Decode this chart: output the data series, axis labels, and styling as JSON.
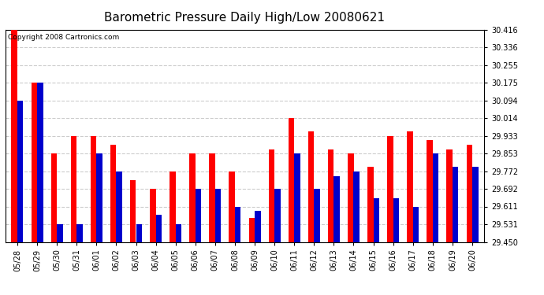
{
  "title": "Barometric Pressure Daily High/Low 20080621",
  "copyright": "Copyright 2008 Cartronics.com",
  "dates": [
    "05/28",
    "05/29",
    "05/30",
    "05/31",
    "06/01",
    "06/02",
    "06/03",
    "06/04",
    "06/05",
    "06/06",
    "06/07",
    "06/08",
    "06/09",
    "06/10",
    "06/11",
    "06/12",
    "06/13",
    "06/14",
    "06/15",
    "06/16",
    "06/17",
    "06/18",
    "06/19",
    "06/20"
  ],
  "highs": [
    30.416,
    30.175,
    29.853,
    29.933,
    29.933,
    29.892,
    29.73,
    29.692,
    29.772,
    29.853,
    29.853,
    29.772,
    29.56,
    29.872,
    30.014,
    29.952,
    29.872,
    29.853,
    29.792,
    29.933,
    29.952,
    29.913,
    29.872,
    29.893
  ],
  "lows": [
    30.094,
    30.175,
    29.531,
    29.531,
    29.853,
    29.772,
    29.531,
    29.572,
    29.531,
    29.692,
    29.692,
    29.611,
    29.59,
    29.692,
    29.853,
    29.692,
    29.75,
    29.772,
    29.65,
    29.65,
    29.611,
    29.853,
    29.792,
    29.792
  ],
  "high_color": "#ff0000",
  "low_color": "#0000cc",
  "ylim_min": 29.45,
  "ylim_max": 30.416,
  "yticks": [
    29.45,
    29.531,
    29.611,
    29.692,
    29.772,
    29.853,
    29.933,
    30.014,
    30.094,
    30.175,
    30.255,
    30.336,
    30.416
  ],
  "background_color": "#ffffff",
  "plot_bg_color": "#ffffff",
  "grid_color": "#cccccc",
  "title_fontsize": 11,
  "copyright_fontsize": 6.5,
  "tick_fontsize": 7,
  "bar_width": 0.3
}
